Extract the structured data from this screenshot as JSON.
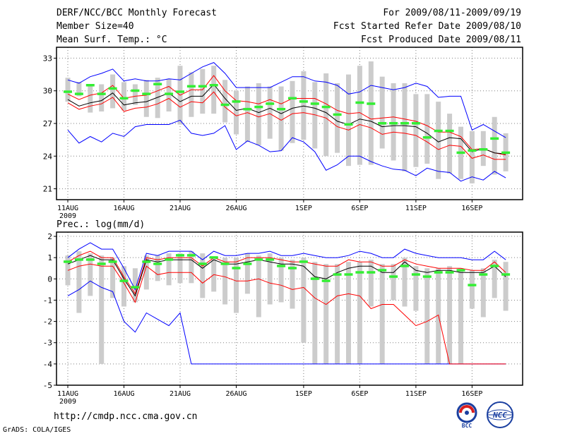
{
  "header": {
    "title": "DERF/NCC/BCC Monthly Forecast",
    "member_size": "Member Size=40",
    "variable": "Mean Surf. Temp.: °C",
    "period": "For 2009/08/11-2009/09/19",
    "start_date": "Fcst Started Refer Date 2009/08/10",
    "produced_date": "Fcst Produced Date 2009/08/11"
  },
  "footer": {
    "url": "http://cmdp.ncc.cma.gov.cn",
    "credit": "GrADS: COLA/IGES",
    "logo_bcc": "BCC",
    "logo_ncc": "NCC"
  },
  "colors": {
    "ens_max_min": "#0000ff",
    "ens_spread": "#ff0000",
    "ens_mean": "#000000",
    "median": "#33ee33",
    "box": "#cccccc",
    "grid": "#808080"
  },
  "chart_data": [
    {
      "type": "line",
      "title": "",
      "ylabel": "",
      "xlabel": "",
      "ylim": [
        20,
        34
      ],
      "yticks": [
        21,
        24,
        27,
        30,
        33
      ],
      "x_tick_labels": [
        "11AUG\n2009",
        "16AUG",
        "21AUG",
        "26AUG",
        "1SEP",
        "6SEP",
        "11SEP",
        "16SEP"
      ],
      "x_tick_days": [
        0,
        5,
        10,
        15,
        21,
        26,
        31,
        36
      ],
      "x_days": [
        0,
        1,
        2,
        3,
        4,
        5,
        6,
        7,
        8,
        9,
        10,
        11,
        12,
        13,
        14,
        15,
        16,
        17,
        18,
        19,
        20,
        21,
        22,
        23,
        24,
        25,
        26,
        27,
        28,
        29,
        30,
        31,
        32,
        33,
        34,
        35,
        36,
        37,
        38,
        39
      ],
      "series": [
        {
          "name": "max",
          "values": [
            31.0,
            30.7,
            31.3,
            31.6,
            32.0,
            30.9,
            31.1,
            30.9,
            30.9,
            31.1,
            31.0,
            31.6,
            32.2,
            32.6,
            31.6,
            30.3,
            30.3,
            30.3,
            30.3,
            30.8,
            31.3,
            31.3,
            30.9,
            30.8,
            30.5,
            29.7,
            29.9,
            30.5,
            30.3,
            30.1,
            30.3,
            30.7,
            30.4,
            29.4,
            29.5,
            29.5,
            26.4,
            26.9,
            26.3,
            25.7
          ]
        },
        {
          "name": "p75",
          "values": [
            29.7,
            29.2,
            29.6,
            29.8,
            30.5,
            29.3,
            29.5,
            29.6,
            30.0,
            30.4,
            29.6,
            30.1,
            30.1,
            31.4,
            30.0,
            29.1,
            29.0,
            28.8,
            29.2,
            28.8,
            29.3,
            29.3,
            29.3,
            28.8,
            28.2,
            27.9,
            28.0,
            27.4,
            27.5,
            27.6,
            27.4,
            27.2,
            26.8,
            26.2,
            26.2,
            25.8,
            24.6,
            24.7,
            24.3,
            24.1
          ]
        },
        {
          "name": "mean",
          "values": [
            29.2,
            28.6,
            28.9,
            29.1,
            29.8,
            28.7,
            28.9,
            29.0,
            29.4,
            29.8,
            29.0,
            29.5,
            29.5,
            30.6,
            29.3,
            28.2,
            28.4,
            28.0,
            28.4,
            27.9,
            28.4,
            28.6,
            28.4,
            28.0,
            27.2,
            26.9,
            27.4,
            27.2,
            26.7,
            26.8,
            26.8,
            26.7,
            26.1,
            25.3,
            25.7,
            25.6,
            24.4,
            24.7,
            24.3,
            24.2
          ]
        },
        {
          "name": "p25",
          "values": [
            28.9,
            28.3,
            28.6,
            28.8,
            29.4,
            28.1,
            28.4,
            28.5,
            28.8,
            29.3,
            28.5,
            29.0,
            28.9,
            29.9,
            28.5,
            27.7,
            28.0,
            27.6,
            27.9,
            27.3,
            27.9,
            28.0,
            27.8,
            27.5,
            26.7,
            26.4,
            26.9,
            26.6,
            26.0,
            26.2,
            26.1,
            25.9,
            25.3,
            24.6,
            25.0,
            24.9,
            23.8,
            24.1,
            23.7,
            23.7
          ]
        },
        {
          "name": "min",
          "values": [
            26.4,
            25.2,
            25.8,
            25.3,
            26.1,
            25.8,
            26.7,
            26.9,
            26.9,
            26.9,
            27.3,
            26.1,
            25.9,
            26.1,
            26.8,
            24.6,
            25.4,
            25.0,
            24.4,
            24.5,
            25.7,
            25.3,
            24.4,
            22.7,
            23.2,
            24.0,
            24.0,
            23.5,
            23.1,
            22.8,
            22.7,
            22.2,
            22.9,
            22.6,
            22.5,
            21.7,
            22.1,
            21.8,
            22.6,
            22.0
          ]
        },
        {
          "name": "box_top",
          "values": [
            31.2,
            30.8,
            30.6,
            30.6,
            31.5,
            30.8,
            30.6,
            31.0,
            31.2,
            31.1,
            32.3,
            31.7,
            32.0,
            32.3,
            31.0,
            30.0,
            30.4,
            30.7,
            30.4,
            30.4,
            30.9,
            31.8,
            30.8,
            31.6,
            30.7,
            31.5,
            32.3,
            32.7,
            31.3,
            30.7,
            30.7,
            29.7,
            29.7,
            29.0,
            27.9,
            26.7,
            26.3,
            26.3,
            27.6,
            26.1
          ]
        },
        {
          "name": "box_bottom",
          "values": [
            29.0,
            29.5,
            28.0,
            28.1,
            28.4,
            28.2,
            28.7,
            27.6,
            27.5,
            28.1,
            26.9,
            27.6,
            27.9,
            27.9,
            27.1,
            26.0,
            25.3,
            25.0,
            25.6,
            24.5,
            25.2,
            25.5,
            24.7,
            24.0,
            24.3,
            23.1,
            23.2,
            23.2,
            24.7,
            23.6,
            22.6,
            23.0,
            23.3,
            21.9,
            22.4,
            21.9,
            21.5,
            23.1,
            22.3,
            22.6
          ]
        },
        {
          "name": "median",
          "values": [
            29.9,
            29.7,
            30.5,
            29.7,
            30.2,
            29.3,
            30.0,
            29.7,
            30.6,
            29.7,
            29.9,
            30.4,
            30.4,
            30.5,
            28.7,
            29.0,
            28.3,
            28.5,
            28.8,
            28.3,
            29.3,
            29.0,
            28.8,
            28.5,
            27.8,
            26.9,
            28.9,
            28.8,
            27.0,
            27.0,
            27.0,
            27.0,
            25.7,
            26.3,
            26.3,
            24.3,
            24.5,
            24.6,
            25.6,
            24.3
          ]
        }
      ]
    },
    {
      "type": "line",
      "title": "Prec.: log(mm/d)",
      "ylabel": "",
      "xlabel": "",
      "ylim": [
        -5,
        2.2
      ],
      "yticks": [
        -5,
        -4,
        -3,
        -2,
        -1,
        0,
        1,
        2
      ],
      "x_tick_labels": [
        "11AUG\n2009",
        "16AUG",
        "21AUG",
        "26AUG",
        "1SEP",
        "6SEP",
        "11SEP",
        "16SEP"
      ],
      "x_tick_days": [
        0,
        5,
        10,
        15,
        21,
        26,
        31,
        36
      ],
      "x_days": [
        0,
        1,
        2,
        3,
        4,
        5,
        6,
        7,
        8,
        9,
        10,
        11,
        12,
        13,
        14,
        15,
        16,
        17,
        18,
        19,
        20,
        21,
        22,
        23,
        24,
        25,
        26,
        27,
        28,
        29,
        30,
        31,
        32,
        33,
        34,
        35,
        36,
        37,
        38,
        39
      ],
      "series": [
        {
          "name": "max",
          "values": [
            1.0,
            1.4,
            1.7,
            1.4,
            1.4,
            0.5,
            -0.5,
            1.2,
            1.1,
            1.3,
            1.3,
            1.3,
            0.9,
            1.3,
            1.1,
            1.1,
            1.2,
            1.2,
            1.3,
            1.1,
            1.1,
            1.2,
            1.1,
            1.0,
            1.0,
            1.1,
            1.3,
            1.2,
            1.0,
            1.0,
            1.4,
            1.2,
            1.1,
            1.0,
            1.0,
            1.0,
            0.9,
            0.9,
            1.3,
            0.9
          ]
        },
        {
          "name": "p75",
          "values": [
            0.8,
            1.1,
            1.3,
            1.0,
            1.0,
            0.1,
            -0.7,
            1.0,
            0.9,
            1.0,
            1.0,
            1.0,
            0.6,
            1.0,
            0.8,
            0.8,
            1.0,
            1.0,
            1.0,
            0.9,
            0.8,
            0.8,
            0.7,
            0.6,
            0.6,
            0.9,
            0.8,
            0.8,
            0.6,
            0.6,
            0.9,
            0.7,
            0.6,
            0.5,
            0.5,
            0.5,
            0.4,
            0.4,
            0.8,
            0.3
          ]
        },
        {
          "name": "mean",
          "values": [
            0.7,
            0.9,
            1.1,
            0.9,
            0.9,
            0.0,
            -0.8,
            0.9,
            0.8,
            0.9,
            0.9,
            0.9,
            0.5,
            0.9,
            0.7,
            0.7,
            0.8,
            0.9,
            0.8,
            0.7,
            0.7,
            0.6,
            0.1,
            0.0,
            0.3,
            0.5,
            0.6,
            0.6,
            0.3,
            0.3,
            0.8,
            0.4,
            0.3,
            0.4,
            0.4,
            0.3,
            0.3,
            0.3,
            0.6,
            0.1
          ]
        },
        {
          "name": "p25",
          "values": [
            0.4,
            0.6,
            0.7,
            0.6,
            0.6,
            -0.2,
            -1.1,
            0.6,
            0.2,
            0.3,
            0.3,
            0.3,
            -0.2,
            0.2,
            0.1,
            -0.1,
            -0.1,
            0.0,
            -0.2,
            -0.3,
            -0.5,
            -0.4,
            -0.9,
            -1.2,
            -0.8,
            -0.7,
            -0.8,
            -1.4,
            -1.2,
            -1.2,
            -1.7,
            -2.2,
            -2.0,
            -1.7,
            -4.0,
            -4.0,
            -4.0,
            -4.0,
            -4.0,
            -4.0
          ]
        },
        {
          "name": "min",
          "values": [
            -0.8,
            -0.5,
            -0.1,
            -0.4,
            -0.6,
            -2.0,
            -2.5,
            -1.6,
            -1.9,
            -2.2,
            -1.6,
            -4.0,
            -4.0,
            -4.0,
            -4.0,
            -4.0,
            -4.0,
            -4.0,
            -4.0,
            -4.0,
            -4.0,
            -4.0,
            -4.0,
            -4.0,
            -4.0,
            -4.0,
            -4.0,
            -4.0,
            -4.0,
            -4.0,
            -4.0,
            -4.0,
            -4.0,
            -4.0,
            -4.0,
            -4.0,
            -4.0,
            -4.0,
            -4.0,
            -4.0
          ]
        },
        {
          "name": "box_top",
          "values": [
            1.1,
            1.3,
            1.2,
            1.1,
            1.0,
            0.6,
            0.5,
            1.1,
            1.1,
            1.2,
            1.2,
            1.3,
            1.2,
            1.0,
            1.0,
            1.0,
            1.2,
            1.1,
            1.2,
            1.0,
            0.9,
            1.0,
            0.8,
            0.7,
            0.7,
            0.8,
            0.8,
            0.9,
            0.7,
            0.7,
            1.0,
            0.6,
            0.5,
            0.5,
            0.6,
            0.5,
            0.4,
            0.5,
            0.9,
            0.8
          ]
        },
        {
          "name": "box_bottom",
          "values": [
            -0.3,
            -1.6,
            -0.8,
            -4.0,
            -0.9,
            -1.3,
            -1.1,
            -0.5,
            -0.1,
            -0.3,
            -0.2,
            -0.2,
            -0.9,
            -0.6,
            -1.2,
            -1.6,
            -0.7,
            -1.8,
            -1.2,
            -1.1,
            -1.4,
            -3.0,
            -4.0,
            -4.0,
            -4.0,
            -4.0,
            -4.0,
            -1.3,
            -4.0,
            -1.0,
            -1.3,
            -1.5,
            -4.0,
            -4.0,
            -4.0,
            -4.0,
            -1.4,
            -1.8,
            -0.9,
            -1.5
          ]
        },
        {
          "name": "median",
          "values": [
            0.8,
            0.9,
            0.9,
            0.7,
            0.8,
            -0.1,
            -0.4,
            0.8,
            0.7,
            0.9,
            1.1,
            1.1,
            0.7,
            1.0,
            0.7,
            0.5,
            0.7,
            0.9,
            0.9,
            0.6,
            0.5,
            0.8,
            0.0,
            -0.1,
            0.2,
            0.2,
            0.3,
            0.3,
            0.4,
            0.1,
            0.6,
            0.2,
            0.1,
            0.3,
            0.3,
            0.4,
            -0.3,
            0.2,
            0.6,
            0.2
          ]
        }
      ]
    }
  ]
}
